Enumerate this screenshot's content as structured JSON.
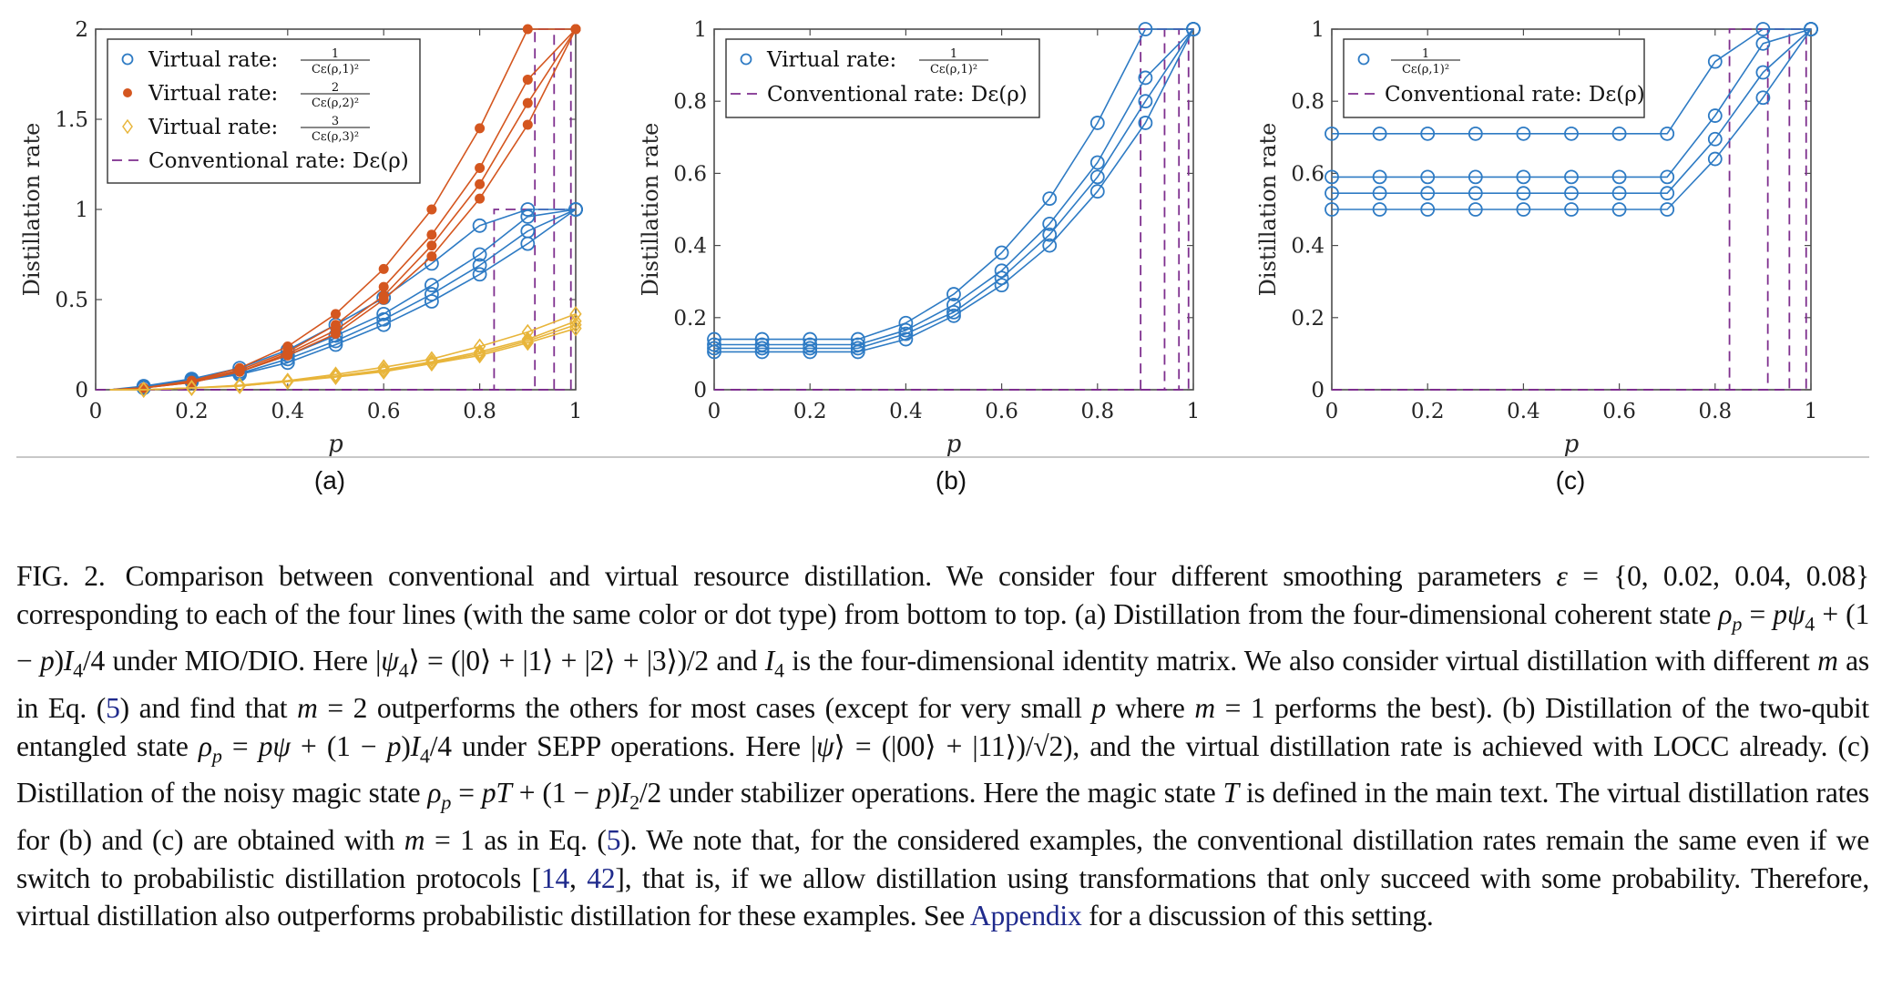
{
  "figure": {
    "panels": [
      {
        "id": "a",
        "label": "(a)"
      },
      {
        "id": "b",
        "label": "(b)"
      },
      {
        "id": "c",
        "label": "(c)"
      }
    ],
    "colors": {
      "virtual_m1": "#2e7bc4",
      "virtual_m2": "#d4561f",
      "virtual_m3": "#e8b53a",
      "conventional": "#7e2f8e",
      "axis": "#4d4d4d",
      "separator": "#c8c8c8",
      "link": "#1f2a8c"
    }
  },
  "chart_data": [
    {
      "panel": "a",
      "type": "line",
      "title": "",
      "xlabel": "p",
      "ylabel": "Distillation rate",
      "xlim": [
        0,
        1
      ],
      "ylim": [
        0,
        2
      ],
      "xticks": [
        "0",
        "0.2",
        "0.4",
        "0.6",
        "0.8",
        "1"
      ],
      "yticks": [
        "0",
        "0.5",
        "1",
        "1.5",
        "2"
      ],
      "xtick_values": [
        0,
        0.2,
        0.4,
        0.6,
        0.8,
        1
      ],
      "ytick_values": [
        0,
        0.5,
        1,
        1.5,
        2
      ],
      "grid": false,
      "legend_position": "top-left",
      "legend": [
        {
          "marker": "circle-open",
          "color_key": "virtual_m1",
          "label": "Virtual rate:",
          "num": "1",
          "den": "Cε(ρ,1)²"
        },
        {
          "marker": "dot",
          "color_key": "virtual_m2",
          "label": "Virtual rate:",
          "num": "2",
          "den": "Cε(ρ,2)²"
        },
        {
          "marker": "diamond-open",
          "color_key": "virtual_m3",
          "label": "Virtual rate:",
          "num": "3",
          "den": "Cε(ρ,3)²"
        },
        {
          "marker": "dash",
          "color_key": "conventional",
          "label": "Conventional rate:",
          "num": "",
          "den": "",
          "math": "Dε(ρ)"
        }
      ],
      "x": [
        0.1,
        0.2,
        0.3,
        0.4,
        0.5,
        0.6,
        0.7,
        0.8,
        0.9,
        1.0
      ],
      "series": [
        {
          "name": "m=1, ε=0.08",
          "color_key": "virtual_m1",
          "marker": "circle-open",
          "values": [
            0.02,
            0.06,
            0.12,
            0.22,
            0.36,
            0.51,
            0.7,
            0.91,
            1.0,
            1.0
          ],
          "cap": 1
        },
        {
          "name": "m=1, ε=0.04",
          "color_key": "virtual_m1",
          "marker": "circle-open",
          "values": [
            0.015,
            0.055,
            0.1,
            0.19,
            0.3,
            0.42,
            0.58,
            0.75,
            0.96,
            1.0
          ],
          "cap": 1
        },
        {
          "name": "m=1, ε=0.02",
          "color_key": "virtual_m1",
          "marker": "circle-open",
          "values": [
            0.01,
            0.05,
            0.09,
            0.17,
            0.27,
            0.39,
            0.53,
            0.69,
            0.88,
            1.0
          ],
          "cap": 1
        },
        {
          "name": "m=1, ε=0",
          "color_key": "virtual_m1",
          "marker": "circle-open",
          "values": [
            0.01,
            0.045,
            0.085,
            0.15,
            0.25,
            0.36,
            0.49,
            0.64,
            0.81,
            1.0
          ],
          "cap": 1
        },
        {
          "name": "m=2, ε=0.08",
          "color_key": "virtual_m2",
          "marker": "dot",
          "values": [
            0.01,
            0.05,
            0.12,
            0.24,
            0.42,
            0.67,
            1.0,
            1.45,
            2.0,
            2.0
          ],
          "cap": 2
        },
        {
          "name": "m=2, ε=0.04",
          "color_key": "virtual_m2",
          "marker": "dot",
          "values": [
            0.01,
            0.045,
            0.11,
            0.21,
            0.36,
            0.57,
            0.86,
            1.23,
            1.72,
            2.0
          ],
          "cap": 2
        },
        {
          "name": "m=2, ε=0.02",
          "color_key": "virtual_m2",
          "marker": "dot",
          "values": [
            0.01,
            0.04,
            0.1,
            0.2,
            0.33,
            0.52,
            0.8,
            1.14,
            1.59,
            2.0
          ],
          "cap": 2
        },
        {
          "name": "m=2, ε=0",
          "color_key": "virtual_m2",
          "marker": "dot",
          "values": [
            0.01,
            0.04,
            0.1,
            0.19,
            0.31,
            0.5,
            0.74,
            1.06,
            1.47,
            2.0
          ],
          "cap": 2
        },
        {
          "name": "m=3, ε=0.08",
          "color_key": "virtual_m3",
          "marker": "diamond-open",
          "values": [
            0.0,
            0.01,
            0.025,
            0.05,
            0.085,
            0.125,
            0.17,
            0.24,
            0.32,
            0.42
          ],
          "cap": 3
        },
        {
          "name": "m=3, ε=0.04",
          "color_key": "virtual_m3",
          "marker": "diamond-open",
          "values": [
            0.0,
            0.01,
            0.022,
            0.048,
            0.075,
            0.11,
            0.155,
            0.21,
            0.28,
            0.38
          ],
          "cap": 3
        },
        {
          "name": "m=3, ε=0.02",
          "color_key": "virtual_m3",
          "marker": "diamond-open",
          "values": [
            0.0,
            0.01,
            0.02,
            0.046,
            0.072,
            0.105,
            0.15,
            0.2,
            0.27,
            0.36
          ],
          "cap": 3
        },
        {
          "name": "m=3, ε=0",
          "color_key": "virtual_m3",
          "marker": "diamond-open",
          "values": [
            0.0,
            0.01,
            0.02,
            0.045,
            0.07,
            0.1,
            0.145,
            0.19,
            0.26,
            0.34
          ],
          "cap": 3
        }
      ],
      "conventional_thresholds": [
        0.83,
        0.915,
        0.955,
        0.99
      ],
      "conventional_tops": [
        1,
        2,
        2,
        2
      ]
    },
    {
      "panel": "b",
      "type": "line",
      "title": "",
      "xlabel": "p",
      "ylabel": "Distillation rate",
      "xlim": [
        0,
        1
      ],
      "ylim": [
        0,
        1
      ],
      "xticks": [
        "0",
        "0.2",
        "0.4",
        "0.6",
        "0.8",
        "1"
      ],
      "yticks": [
        "0",
        "0.2",
        "0.4",
        "0.6",
        "0.8",
        "1"
      ],
      "xtick_values": [
        0,
        0.2,
        0.4,
        0.6,
        0.8,
        1
      ],
      "ytick_values": [
        0,
        0.2,
        0.4,
        0.6,
        0.8,
        1
      ],
      "grid": false,
      "legend_position": "top-left",
      "legend": [
        {
          "marker": "circle-open",
          "color_key": "virtual_m1",
          "label": "Virtual rate:",
          "num": "1",
          "den": "Cε(ρ,1)²"
        },
        {
          "marker": "dash",
          "color_key": "conventional",
          "label": "Conventional rate:",
          "num": "",
          "den": "",
          "math": "Dε(ρ)"
        }
      ],
      "x": [
        0,
        0.1,
        0.2,
        0.3,
        0.4,
        0.5,
        0.6,
        0.7,
        0.8,
        0.9,
        1.0
      ],
      "series": [
        {
          "name": "ε=0.08",
          "color_key": "virtual_m1",
          "marker": "circle-open",
          "values": [
            0.14,
            0.14,
            0.14,
            0.14,
            0.185,
            0.265,
            0.38,
            0.53,
            0.74,
            1.0,
            1.0
          ],
          "cap": 1
        },
        {
          "name": "ε=0.04",
          "color_key": "virtual_m1",
          "marker": "circle-open",
          "values": [
            0.125,
            0.125,
            0.125,
            0.125,
            0.165,
            0.235,
            0.33,
            0.46,
            0.63,
            0.865,
            1.0
          ],
          "cap": 1
        },
        {
          "name": "ε=0.02",
          "color_key": "virtual_m1",
          "marker": "circle-open",
          "values": [
            0.115,
            0.115,
            0.115,
            0.115,
            0.155,
            0.215,
            0.31,
            0.43,
            0.59,
            0.8,
            1.0
          ],
          "cap": 1
        },
        {
          "name": "ε=0",
          "color_key": "virtual_m1",
          "marker": "circle-open",
          "values": [
            0.105,
            0.105,
            0.105,
            0.105,
            0.14,
            0.205,
            0.29,
            0.4,
            0.55,
            0.74,
            1.0
          ],
          "cap": 1
        }
      ],
      "conventional_thresholds": [
        0.89,
        0.94,
        0.97,
        0.99
      ],
      "conventional_tops": [
        1,
        1,
        1,
        1
      ]
    },
    {
      "panel": "c",
      "type": "line",
      "title": "",
      "xlabel": "p",
      "ylabel": "Distillation rate",
      "xlim": [
        0,
        1
      ],
      "ylim": [
        0,
        1
      ],
      "xticks": [
        "0",
        "0.2",
        "0.4",
        "0.6",
        "0.8",
        "1"
      ],
      "yticks": [
        "0",
        "0.2",
        "0.4",
        "0.6",
        "0.8",
        "1"
      ],
      "xtick_values": [
        0,
        0.2,
        0.4,
        0.6,
        0.8,
        1
      ],
      "ytick_values": [
        0,
        0.2,
        0.4,
        0.6,
        0.8,
        1
      ],
      "grid": false,
      "legend_position": "top-left",
      "legend": [
        {
          "marker": "circle-open",
          "color_key": "virtual_m1",
          "label": "",
          "num": "1",
          "den": "Cε(ρ,1)²"
        },
        {
          "marker": "dash",
          "color_key": "conventional",
          "label": "Conventional rate:",
          "num": "",
          "den": "",
          "math": "Dε(ρ)"
        }
      ],
      "x": [
        0,
        0.1,
        0.2,
        0.3,
        0.4,
        0.5,
        0.6,
        0.7,
        0.8,
        0.9,
        1.0
      ],
      "series": [
        {
          "name": "ε=0.08",
          "color_key": "virtual_m1",
          "marker": "circle-open",
          "values": [
            0.71,
            0.71,
            0.71,
            0.71,
            0.71,
            0.71,
            0.71,
            0.71,
            0.91,
            1.0,
            1.0
          ],
          "cap": 1
        },
        {
          "name": "ε=0.04",
          "color_key": "virtual_m1",
          "marker": "circle-open",
          "values": [
            0.59,
            0.59,
            0.59,
            0.59,
            0.59,
            0.59,
            0.59,
            0.59,
            0.76,
            0.96,
            1.0
          ],
          "cap": 1
        },
        {
          "name": "ε=0.02",
          "color_key": "virtual_m1",
          "marker": "circle-open",
          "values": [
            0.545,
            0.545,
            0.545,
            0.545,
            0.545,
            0.545,
            0.545,
            0.545,
            0.695,
            0.88,
            1.0
          ],
          "cap": 1
        },
        {
          "name": "ε=0",
          "color_key": "virtual_m1",
          "marker": "circle-open",
          "values": [
            0.5,
            0.5,
            0.5,
            0.5,
            0.5,
            0.5,
            0.5,
            0.5,
            0.64,
            0.81,
            1.0
          ],
          "cap": 1
        }
      ],
      "conventional_thresholds": [
        0.83,
        0.91,
        0.955,
        0.99
      ],
      "conventional_tops": [
        1,
        1,
        1,
        1
      ]
    }
  ],
  "caption": {
    "fig_num": "FIG. 2.",
    "segments": [
      {
        "t": "Comparison between conventional and virtual resource distillation.  We consider four different smoothing parameters "
      },
      {
        "t": "ε",
        "i": true
      },
      {
        "t": " = {0, 0.02, 0.04, 0.08} corresponding to each of the four lines (with the same color or dot type) from bottom to top.  (a) Distillation from the four-dimensional coherent state "
      },
      {
        "t": "ρ",
        "i": true
      },
      {
        "t": "p",
        "i": true,
        "sub": true
      },
      {
        "t": " = "
      },
      {
        "t": "pψ",
        "i": true
      },
      {
        "t": "4",
        "sub": true
      },
      {
        "t": " + (1 − "
      },
      {
        "t": "p",
        "i": true
      },
      {
        "t": ")"
      },
      {
        "t": "I",
        "i": true
      },
      {
        "t": "4",
        "sub": true
      },
      {
        "t": "/4 under MIO/DIO. Here |"
      },
      {
        "t": "ψ",
        "i": true
      },
      {
        "t": "4",
        "sub": true
      },
      {
        "t": "⟩ = (|0⟩ + |1⟩ + |2⟩ + |3⟩)/2 and "
      },
      {
        "t": "I",
        "i": true
      },
      {
        "t": "4",
        "sub": true
      },
      {
        "t": " is the four-dimensional identity matrix.  We also consider virtual distillation with different "
      },
      {
        "t": "m",
        "i": true
      },
      {
        "t": " as in Eq. ("
      },
      {
        "t": "5",
        "ref": true
      },
      {
        "t": ") and find that "
      },
      {
        "t": "m",
        "i": true
      },
      {
        "t": " = 2 outperforms the others for most cases (except for very small "
      },
      {
        "t": "p",
        "i": true
      },
      {
        "t": " where "
      },
      {
        "t": "m",
        "i": true
      },
      {
        "t": " = 1 performs the best). (b) Distillation of the two-qubit entangled state "
      },
      {
        "t": "ρ",
        "i": true
      },
      {
        "t": "p",
        "i": true,
        "sub": true
      },
      {
        "t": " = "
      },
      {
        "t": "pψ",
        "i": true
      },
      {
        "t": " + (1 − "
      },
      {
        "t": "p",
        "i": true
      },
      {
        "t": ")"
      },
      {
        "t": "I",
        "i": true
      },
      {
        "t": "4",
        "sub": true
      },
      {
        "t": "/4 under SEPP operations.  Here |"
      },
      {
        "t": "ψ",
        "i": true
      },
      {
        "t": "⟩ = (|00⟩ + |11⟩)/√2), and the virtual distillation rate is achieved with LOCC already.  (c) Distillation of the noisy magic state "
      },
      {
        "t": "ρ",
        "i": true
      },
      {
        "t": "p",
        "i": true,
        "sub": true
      },
      {
        "t": " = "
      },
      {
        "t": "pT",
        "i": true
      },
      {
        "t": " + (1 − "
      },
      {
        "t": "p",
        "i": true
      },
      {
        "t": ")"
      },
      {
        "t": "I",
        "i": true
      },
      {
        "t": "2",
        "sub": true
      },
      {
        "t": "/2 under stabilizer operations.  Here the magic state "
      },
      {
        "t": "T",
        "i": true
      },
      {
        "t": " is defined in the main text.  The virtual distillation rates for (b) and (c) are obtained with "
      },
      {
        "t": "m",
        "i": true
      },
      {
        "t": " = 1 as in Eq. ("
      },
      {
        "t": "5",
        "ref": true
      },
      {
        "t": ").  We note that, for the considered examples, the conventional distillation rates remain the same even if we switch to probabilistic distillation protocols ["
      },
      {
        "t": "14",
        "ref": true
      },
      {
        "t": ", "
      },
      {
        "t": "42",
        "ref": true
      },
      {
        "t": "], that is, if we allow distillation using transformations that only succeed with some probability.  Therefore, virtual distillation also outperforms probabilistic distillation for these examples.  See "
      },
      {
        "t": "Appendix",
        "ref": true
      },
      {
        "t": " for a discussion of this setting."
      }
    ]
  }
}
